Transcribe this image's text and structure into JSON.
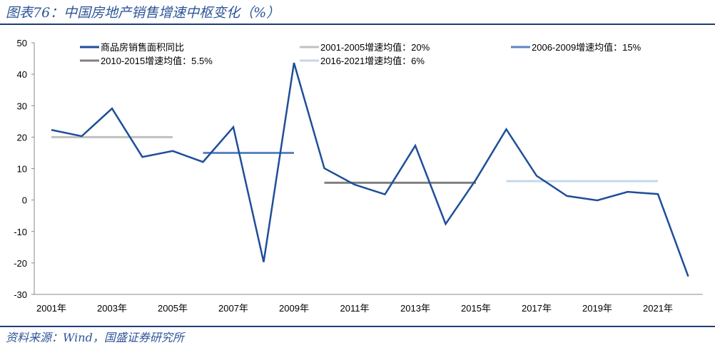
{
  "title": "图表76：中国房地产销售增速中枢变化（%）",
  "source": "资料来源：Wind，国盛证券研究所",
  "chart_data": {
    "type": "line",
    "title": "图表76：中国房地产销售增速中枢变化（%）",
    "ylim": [
      -30,
      50
    ],
    "yticks": [
      50,
      40,
      30,
      20,
      10,
      0,
      -10,
      -20,
      -30
    ],
    "xtick_labels": [
      "2001年",
      "2003年",
      "2005年",
      "2007年",
      "2009年",
      "2011年",
      "2013年",
      "2015年",
      "2017年",
      "2019年",
      "2021年"
    ],
    "x": [
      2001,
      2002,
      2003,
      2004,
      2005,
      2006,
      2007,
      2008,
      2009,
      2010,
      2011,
      2012,
      2013,
      2014,
      2015,
      2016,
      2017,
      2018,
      2019,
      2020,
      2021,
      2022
    ],
    "series": [
      {
        "name": "商品房销售面积同比",
        "color": "#1f4e9a",
        "values": [
          22.3,
          20.3,
          29.1,
          13.7,
          15.6,
          12.1,
          23.2,
          -19.7,
          43.6,
          10.1,
          4.9,
          1.8,
          17.3,
          -7.6,
          6.5,
          22.5,
          7.7,
          1.3,
          -0.1,
          2.6,
          1.9,
          -24.3
        ]
      }
    ],
    "averages": [
      {
        "name": "2001-2005增速均值：20%",
        "color": "#c0c0c0",
        "from": 2001,
        "to": 2005,
        "value": 20
      },
      {
        "name": "2006-2009增速均值：15%",
        "color": "#5b86c0",
        "from": 2006,
        "to": 2009,
        "value": 15
      },
      {
        "name": "2010-2015增速均值：5.5%",
        "color": "#808080",
        "from": 2010,
        "to": 2015,
        "value": 5.5
      },
      {
        "name": "2016-2021增速均值：6%",
        "color": "#c5d6ec",
        "from": 2016,
        "to": 2021,
        "value": 6
      }
    ],
    "grid": false,
    "legend": "top"
  }
}
